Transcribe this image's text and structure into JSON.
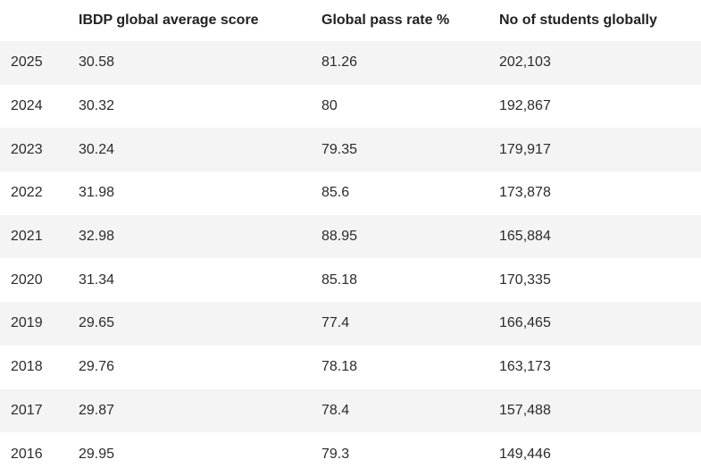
{
  "table": {
    "headers": [
      "",
      "IBDP global average score",
      "Global pass rate %",
      "No of students globally"
    ],
    "rows": [
      [
        "2025",
        "30.58",
        "81.26",
        "202,103"
      ],
      [
        "2024",
        "30.32",
        "80",
        "192,867"
      ],
      [
        "2023",
        "30.24",
        "79.35",
        "179,917"
      ],
      [
        "2022",
        "31.98",
        "85.6",
        "173,878"
      ],
      [
        "2021",
        "32.98",
        "88.95",
        "165,884"
      ],
      [
        "2020",
        "31.34",
        "85.18",
        "170,335"
      ],
      [
        "2019",
        "29.65",
        "77.4",
        "166,465"
      ],
      [
        "2018",
        "29.76",
        "78.18",
        "163,173"
      ],
      [
        "2017",
        "29.87",
        "78.4",
        "157,488"
      ],
      [
        "2016",
        "29.95",
        "79.3",
        "149,446"
      ]
    ]
  }
}
